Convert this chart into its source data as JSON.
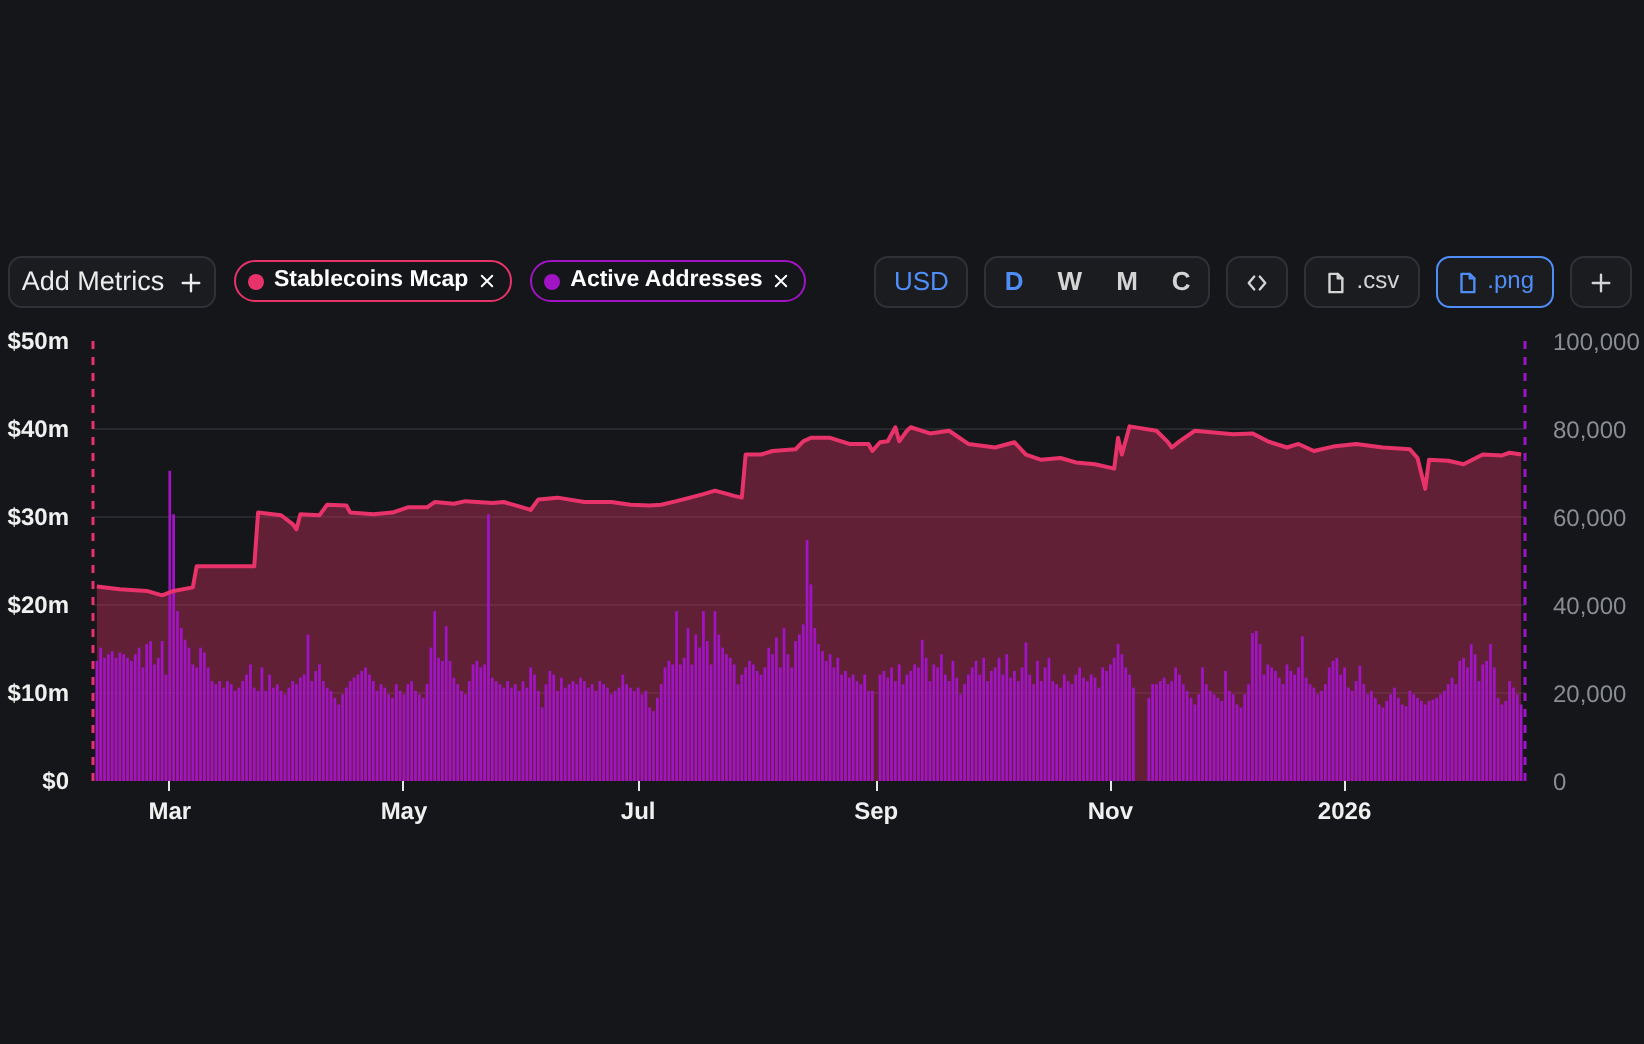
{
  "chart_data": {
    "type": "area",
    "annotations": [
      "Add Metrics",
      "USD",
      "D",
      "W",
      "M",
      "C",
      ".csv",
      ".png"
    ],
    "legend": "top left",
    "grid": "y",
    "xlim": [
      "2025-02-09",
      "2026-02-17"
    ],
    "xticks": [
      {
        "value": "2025-03-01",
        "label": "Mar"
      },
      {
        "value": "2025-05-01",
        "label": "May"
      },
      {
        "value": "2025-07-01",
        "label": "Jul"
      },
      {
        "value": "2025-09-01",
        "label": "Sep"
      },
      {
        "value": "2025-11-01",
        "label": "Nov"
      },
      {
        "value": "2026-01-01",
        "label": "2026"
      }
    ],
    "ylim": [
      0,
      50
    ],
    "yticks": [
      {
        "value": 0,
        "label": "$0"
      },
      {
        "value": 10,
        "label": "$10m"
      },
      {
        "value": 20,
        "label": "$20m"
      },
      {
        "value": 30,
        "label": "$30m"
      },
      {
        "value": 40,
        "label": "$40m"
      },
      {
        "value": 50,
        "label": "$50m"
      }
    ],
    "y2lim": [
      0,
      100000
    ],
    "y2ticks": [
      0,
      {
        "value": 20000,
        "label": "20,000"
      },
      {
        "value": 40000,
        "label": "40,000"
      },
      {
        "value": 60000,
        "label": "60,000"
      },
      {
        "value": 80000,
        "label": "80,000"
      },
      {
        "value": 100000,
        "label": "100,000"
      }
    ],
    "series": [
      {
        "name": "Stablecoins Mcap",
        "color": "#e8336a",
        "x": [
          "2025-02-10",
          "2025-02-16",
          "2025-02-23",
          "2025-02-27",
          "2025-03-02",
          "2025-03-07",
          "2025-03-08",
          "2025-03-23",
          "2025-03-24",
          "2025-03-30",
          "2025-04-02",
          "2025-04-03",
          "2025-04-04",
          "2025-04-09",
          "2025-04-11",
          "2025-04-16",
          "2025-04-17",
          "2025-04-23",
          "2025-04-28",
          "2025-05-02",
          "2025-05-07",
          "2025-05-09",
          "2025-05-14",
          "2025-05-17",
          "2025-05-24",
          "2025-05-27",
          "2025-05-31",
          "2025-06-03",
          "2025-06-05",
          "2025-06-10",
          "2025-06-17",
          "2025-06-24",
          "2025-06-29",
          "2025-07-04",
          "2025-07-07",
          "2025-07-11",
          "2025-07-18",
          "2025-07-21",
          "2025-07-26",
          "2025-07-28",
          "2025-07-29",
          "2025-08-02",
          "2025-08-05",
          "2025-08-11",
          "2025-08-13",
          "2025-08-15",
          "2025-08-20",
          "2025-08-25",
          "2025-08-30",
          "2025-08-31",
          "2025-09-02",
          "2025-09-04",
          "2025-09-06",
          "2025-09-07",
          "2025-09-09",
          "2025-09-10",
          "2025-09-15",
          "2025-09-20",
          "2025-09-25",
          "2025-10-02",
          "2025-10-07",
          "2025-10-10",
          "2025-10-14",
          "2025-10-19",
          "2025-10-23",
          "2025-10-28",
          "2025-11-02",
          "2025-11-03",
          "2025-11-04",
          "2025-11-06",
          "2025-11-13",
          "2025-11-16",
          "2025-11-17",
          "2025-11-19",
          "2025-11-23",
          "2025-12-03",
          "2025-12-08",
          "2025-12-12",
          "2025-12-17",
          "2025-12-20",
          "2025-12-24",
          "2025-12-29",
          "2026-01-04",
          "2026-01-11",
          "2026-01-18",
          "2026-01-20",
          "2026-01-22",
          "2026-01-23",
          "2026-01-28",
          "2026-02-01",
          "2026-02-06",
          "2026-02-11",
          "2026-02-13",
          "2026-02-16"
        ],
        "values": [
          22.1,
          21.8,
          21.6,
          21.1,
          21.6,
          22.0,
          24.4,
          24.4,
          30.5,
          30.2,
          29.2,
          28.6,
          30.3,
          30.2,
          31.4,
          31.3,
          30.5,
          30.3,
          30.5,
          31.1,
          31.1,
          31.7,
          31.5,
          31.8,
          31.6,
          31.7,
          31.2,
          30.8,
          32.0,
          32.2,
          31.7,
          31.7,
          31.4,
          31.3,
          31.4,
          31.8,
          32.6,
          33.0,
          32.4,
          32.2,
          37.1,
          37.1,
          37.5,
          37.7,
          38.6,
          39.0,
          39.0,
          38.3,
          38.3,
          37.5,
          38.5,
          38.6,
          40.2,
          38.6,
          39.8,
          40.2,
          39.5,
          39.8,
          38.3,
          37.9,
          38.5,
          37.1,
          36.5,
          36.7,
          36.2,
          36.0,
          35.5,
          39.0,
          37.1,
          40.3,
          39.8,
          38.5,
          37.9,
          38.6,
          39.8,
          39.4,
          39.5,
          38.6,
          37.9,
          38.3,
          37.5,
          38.0,
          38.3,
          37.9,
          37.7,
          36.7,
          33.2,
          36.5,
          36.4,
          36.0,
          37.1,
          37.0,
          37.3,
          37.1
        ]
      },
      {
        "name": "Active Addresses",
        "type": "bar",
        "axis": "y2",
        "color": "#a014c4",
        "x": [
          "2025-02-10",
          "2025-02-11",
          "2025-02-12",
          "2025-02-13",
          "2025-02-14",
          "2025-02-15",
          "2025-02-16",
          "2025-02-17",
          "2025-02-18",
          "2025-02-19",
          "2025-02-20",
          "2025-02-21",
          "2025-02-22",
          "2025-02-23",
          "2025-02-24",
          "2025-02-25",
          "2025-02-26",
          "2025-02-27",
          "2025-02-28",
          "2025-03-01",
          "2025-03-02",
          "2025-03-03",
          "2025-03-04",
          "2025-03-05",
          "2025-03-06",
          "2025-03-07",
          "2025-03-08",
          "2025-03-09",
          "2025-03-10",
          "2025-03-11",
          "2025-03-12",
          "2025-03-13",
          "2025-03-14",
          "2025-03-15",
          "2025-03-16",
          "2025-03-17",
          "2025-03-18",
          "2025-03-19",
          "2025-03-20",
          "2025-03-21",
          "2025-03-22",
          "2025-03-23",
          "2025-03-24",
          "2025-03-25",
          "2025-03-26",
          "2025-03-27",
          "2025-03-28",
          "2025-03-29",
          "2025-03-30",
          "2025-03-31",
          "2025-04-01",
          "2025-04-02",
          "2025-04-03",
          "2025-04-04",
          "2025-04-05",
          "2025-04-06",
          "2025-04-07",
          "2025-04-08",
          "2025-04-09",
          "2025-04-10",
          "2025-04-11",
          "2025-04-12",
          "2025-04-13",
          "2025-04-14",
          "2025-04-15",
          "2025-04-16",
          "2025-04-17",
          "2025-04-18",
          "2025-04-19",
          "2025-04-20",
          "2025-04-21",
          "2025-04-22",
          "2025-04-23",
          "2025-04-24",
          "2025-04-25",
          "2025-04-26",
          "2025-04-27",
          "2025-04-28",
          "2025-04-29",
          "2025-04-30",
          "2025-05-01",
          "2025-05-02",
          "2025-05-03",
          "2025-05-04",
          "2025-05-05",
          "2025-05-06",
          "2025-05-07",
          "2025-05-08",
          "2025-05-09",
          "2025-05-10",
          "2025-05-11",
          "2025-05-12",
          "2025-05-13",
          "2025-05-14",
          "2025-05-15",
          "2025-05-16",
          "2025-05-17",
          "2025-05-18",
          "2025-05-19",
          "2025-05-20",
          "2025-05-21",
          "2025-05-22",
          "2025-05-23",
          "2025-05-24",
          "2025-05-25",
          "2025-05-26",
          "2025-05-27",
          "2025-05-28",
          "2025-05-29",
          "2025-05-30",
          "2025-05-31",
          "2025-06-01",
          "2025-06-02",
          "2025-06-03",
          "2025-06-04",
          "2025-06-05",
          "2025-06-06",
          "2025-06-07",
          "2025-06-08",
          "2025-06-09",
          "2025-06-10",
          "2025-06-11",
          "2025-06-12",
          "2025-06-13",
          "2025-06-14",
          "2025-06-15",
          "2025-06-16",
          "2025-06-17",
          "2025-06-18",
          "2025-06-19",
          "2025-06-20",
          "2025-06-21",
          "2025-06-22",
          "2025-06-23",
          "2025-06-24",
          "2025-06-25",
          "2025-06-26",
          "2025-06-27",
          "2025-06-28",
          "2025-06-29",
          "2025-06-30",
          "2025-07-01",
          "2025-07-02",
          "2025-07-03",
          "2025-07-04",
          "2025-07-05",
          "2025-07-06",
          "2025-07-07",
          "2025-07-08",
          "2025-07-09",
          "2025-07-10",
          "2025-07-11",
          "2025-07-12",
          "2025-07-13",
          "2025-07-14",
          "2025-07-15",
          "2025-07-16",
          "2025-07-17",
          "2025-07-18",
          "2025-07-19",
          "2025-07-20",
          "2025-07-21",
          "2025-07-22",
          "2025-07-23",
          "2025-07-24",
          "2025-07-25",
          "2025-07-26",
          "2025-07-27",
          "2025-07-28",
          "2025-07-29",
          "2025-07-30",
          "2025-07-31",
          "2025-08-01",
          "2025-08-02",
          "2025-08-03",
          "2025-08-04",
          "2025-08-05",
          "2025-08-06",
          "2025-08-07",
          "2025-08-08",
          "2025-08-09",
          "2025-08-10",
          "2025-08-11",
          "2025-08-12",
          "2025-08-13",
          "2025-08-14",
          "2025-08-15",
          "2025-08-16",
          "2025-08-17",
          "2025-08-18",
          "2025-08-19",
          "2025-08-20",
          "2025-08-21",
          "2025-08-22",
          "2025-08-23",
          "2025-08-24",
          "2025-08-25",
          "2025-08-26",
          "2025-08-27",
          "2025-08-28",
          "2025-08-29",
          "2025-08-30",
          "2025-08-31",
          "2025-09-01",
          "2025-09-02",
          "2025-09-03",
          "2025-09-04",
          "2025-09-05",
          "2025-09-06",
          "2025-09-07",
          "2025-09-08",
          "2025-09-09",
          "2025-09-10",
          "2025-09-11",
          "2025-09-12",
          "2025-09-13",
          "2025-09-14",
          "2025-09-15",
          "2025-09-16",
          "2025-09-17",
          "2025-09-18",
          "2025-09-19",
          "2025-09-20",
          "2025-09-21",
          "2025-09-22",
          "2025-09-23",
          "2025-09-24",
          "2025-09-25",
          "2025-09-26",
          "2025-09-27",
          "2025-09-28",
          "2025-09-29",
          "2025-09-30",
          "2025-10-01",
          "2025-10-02",
          "2025-10-03",
          "2025-10-04",
          "2025-10-05",
          "2025-10-06",
          "2025-10-07",
          "2025-10-08",
          "2025-10-09",
          "2025-10-10",
          "2025-10-11",
          "2025-10-12",
          "2025-10-13",
          "2025-10-14",
          "2025-10-15",
          "2025-10-16",
          "2025-10-17",
          "2025-10-18",
          "2025-10-19",
          "2025-10-20",
          "2025-10-21",
          "2025-10-22",
          "2025-10-23",
          "2025-10-24",
          "2025-10-25",
          "2025-10-26",
          "2025-10-27",
          "2025-10-28",
          "2025-10-29",
          "2025-10-30",
          "2025-10-31",
          "2025-11-01",
          "2025-11-02",
          "2025-11-03",
          "2025-11-04",
          "2025-11-05",
          "2025-11-06",
          "2025-11-07",
          "2025-11-08",
          "2025-11-09",
          "2025-11-10",
          "2025-11-11",
          "2025-11-12",
          "2025-11-13",
          "2025-11-14",
          "2025-11-15",
          "2025-11-16",
          "2025-11-17",
          "2025-11-18",
          "2025-11-19",
          "2025-11-20",
          "2025-11-21",
          "2025-11-22",
          "2025-11-23",
          "2025-11-24",
          "2025-11-25",
          "2025-11-26",
          "2025-11-27",
          "2025-11-28",
          "2025-11-29",
          "2025-11-30",
          "2025-12-01",
          "2025-12-02",
          "2025-12-03",
          "2025-12-04",
          "2025-12-05",
          "2025-12-06",
          "2025-12-07",
          "2025-12-08",
          "2025-12-09",
          "2025-12-10",
          "2025-12-11",
          "2025-12-12",
          "2025-12-13",
          "2025-12-14",
          "2025-12-15",
          "2025-12-16",
          "2025-12-17",
          "2025-12-18",
          "2025-12-19",
          "2025-12-20",
          "2025-12-21",
          "2025-12-22",
          "2025-12-23",
          "2025-12-24",
          "2025-12-25",
          "2025-12-26",
          "2025-12-27",
          "2025-12-28",
          "2025-12-29",
          "2025-12-30",
          "2025-12-31",
          "2026-01-01",
          "2026-01-02",
          "2026-01-03",
          "2026-01-04",
          "2026-01-05",
          "2026-01-06",
          "2026-01-07",
          "2026-01-08",
          "2026-01-09",
          "2026-01-10",
          "2026-01-11",
          "2026-01-12",
          "2026-01-13",
          "2026-01-14",
          "2026-01-15",
          "2026-01-16",
          "2026-01-17",
          "2026-01-18",
          "2026-01-19",
          "2026-01-20",
          "2026-01-21",
          "2026-01-22",
          "2026-01-23",
          "2026-01-24",
          "2026-01-25",
          "2026-01-26",
          "2026-01-27",
          "2026-01-28",
          "2026-01-29",
          "2026-01-30",
          "2026-01-31",
          "2026-02-01",
          "2026-02-02",
          "2026-02-03",
          "2026-02-04",
          "2026-02-05",
          "2026-02-06",
          "2026-02-07",
          "2026-02-08",
          "2026-02-09",
          "2026-02-10",
          "2026-02-11",
          "2026-02-12",
          "2026-02-13",
          "2026-02-14",
          "2026-02-15",
          "2026-02-16"
        ],
        "values": [
          27300,
          30300,
          28000,
          28800,
          29500,
          28000,
          29200,
          28800,
          28000,
          27300,
          28800,
          30300,
          25800,
          31100,
          31800,
          26500,
          28000,
          31800,
          24200,
          70500,
          60600,
          38600,
          34800,
          32100,
          30300,
          26500,
          25800,
          30300,
          29200,
          25800,
          22700,
          22000,
          22700,
          21200,
          22700,
          22000,
          20500,
          21200,
          22700,
          24200,
          26500,
          21200,
          20500,
          25800,
          20500,
          24200,
          21200,
          22000,
          20500,
          19700,
          21200,
          22700,
          22000,
          23500,
          24200,
          33300,
          22700,
          25000,
          26500,
          22700,
          21200,
          20500,
          18900,
          17400,
          19700,
          21200,
          22700,
          23500,
          24200,
          25000,
          25800,
          24200,
          22700,
          20500,
          22000,
          21200,
          19700,
          18900,
          22000,
          20500,
          19700,
          22000,
          22700,
          20500,
          19700,
          18900,
          22000,
          30300,
          38600,
          28000,
          27300,
          35200,
          27300,
          23500,
          22000,
          20500,
          19700,
          22700,
          26500,
          27300,
          25800,
          26500,
          60600,
          23500,
          22700,
          22000,
          21200,
          22700,
          21200,
          22000,
          20500,
          22700,
          21200,
          25800,
          24200,
          20500,
          16700,
          22000,
          25000,
          24200,
          20500,
          23500,
          21200,
          22000,
          22700,
          22000,
          23500,
          22700,
          21200,
          22000,
          20500,
          22700,
          22000,
          21200,
          19700,
          20500,
          21200,
          24200,
          22000,
          21200,
          20500,
          21200,
          19700,
          20500,
          16700,
          15900,
          18900,
          22000,
          25800,
          27300,
          26500,
          38600,
          26500,
          28000,
          34800,
          26500,
          33300,
          30300,
          38600,
          31800,
          26500,
          38600,
          33300,
          30300,
          28800,
          28000,
          26500,
          22000,
          24200,
          25800,
          27300,
          26500,
          25000,
          24200,
          25800,
          30300,
          28800,
          32600,
          25800,
          34800,
          28800,
          25800,
          31800,
          33300,
          35600,
          54800,
          44700,
          34800,
          31100,
          29500,
          27300,
          28800,
          25800,
          28000,
          24200,
          25000,
          23500,
          24200,
          22700,
          22000,
          24200,
          20500,
          20500,
          null,
          24200,
          25000,
          23500,
          25800,
          22700,
          26500,
          22000,
          24200,
          25000,
          26500,
          25800,
          32100,
          28000,
          22700,
          26500,
          25800,
          28800,
          24200,
          22700,
          27300,
          23500,
          19700,
          22000,
          24200,
          25800,
          27300,
          24200,
          28000,
          22700,
          25000,
          25800,
          28000,
          24200,
          28800,
          23500,
          25000,
          22700,
          25800,
          31500,
          24200,
          22000,
          27300,
          22700,
          25800,
          28000,
          22700,
          22000,
          21200,
          24200,
          22700,
          22000,
          24200,
          25800,
          23500,
          22700,
          24200,
          23500,
          21200,
          25800,
          25000,
          26500,
          28000,
          31100,
          28800,
          25800,
          24200,
          21200,
          null,
          null,
          null,
          18900,
          22000,
          22000,
          22700,
          23500,
          22000,
          22700,
          25800,
          24200,
          22000,
          20500,
          18900,
          17400,
          19700,
          25800,
          22000,
          20500,
          19700,
          18900,
          18200,
          25000,
          20500,
          19700,
          17400,
          16700,
          19700,
          22000,
          33600,
          34100,
          31100,
          24200,
          26500,
          25800,
          25000,
          23500,
          22000,
          26500,
          25000,
          24200,
          25800,
          32900,
          23500,
          22000,
          21200,
          19700,
          20500,
          22000,
          25800,
          27300,
          28000,
          24200,
          25800,
          21200,
          20500,
          22700,
          26200,
          22000,
          19700,
          20500,
          18900,
          17400,
          16700,
          18200,
          19700,
          21200,
          18900,
          17400,
          17000,
          20500,
          19700,
          18900,
          18200,
          17400,
          18200,
          18500,
          18900,
          19700,
          20500,
          22000,
          23500,
          22000,
          27300,
          28000,
          25800,
          31100,
          28800,
          22700,
          26500,
          27300,
          31100,
          25800,
          18900,
          17400,
          18200,
          22700,
          21200,
          19700,
          17400
        ]
      }
    ]
  }
}
